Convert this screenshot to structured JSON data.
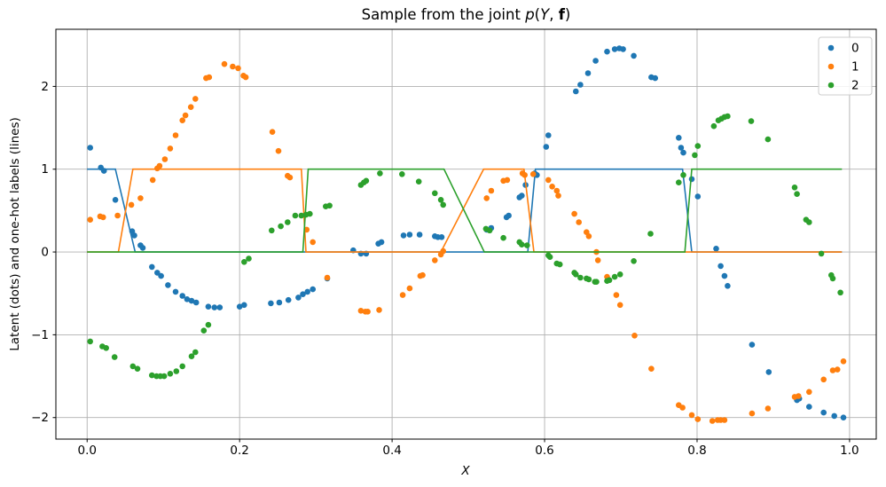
{
  "chart_data": {
    "type": "scatter",
    "title": "Sample from the joint p(Y, f)",
    "title_parts": {
      "prefix": "Sample from the joint ",
      "func": "p",
      "paren_open": "(",
      "var": "Y",
      "comma": ", ",
      "vec": "f",
      "paren_close": ")"
    },
    "xlabel": "X",
    "ylabel": "Latent (dots) and one-hot labels (lines)",
    "xlim": [
      -0.041,
      1.035
    ],
    "ylim": [
      -2.26,
      2.69
    ],
    "grid": true,
    "grid_color": "#b0b0b0",
    "x_ticks": {
      "values": [
        0.0,
        0.2,
        0.4,
        0.6,
        0.8,
        1.0
      ],
      "labels": [
        "0.0",
        "0.2",
        "0.4",
        "0.6",
        "0.8",
        "1.0"
      ]
    },
    "y_ticks": {
      "values": [
        -2,
        -1,
        0,
        1,
        2
      ],
      "labels": [
        "−2",
        "−1",
        "0",
        "1",
        "2"
      ]
    },
    "legend": {
      "position": "upper right",
      "entries": [
        "0",
        "1",
        "2"
      ]
    },
    "series": [
      {
        "name": "0",
        "color": "#1f77b4",
        "marker": "dot",
        "dots": [
          [
            0.004,
            1.26
          ],
          [
            0.018,
            1.02
          ],
          [
            0.022,
            0.98
          ],
          [
            0.037,
            0.63
          ],
          [
            0.059,
            0.25
          ],
          [
            0.062,
            0.2
          ],
          [
            0.07,
            0.08
          ],
          [
            0.073,
            0.05
          ],
          [
            0.085,
            -0.18
          ],
          [
            0.092,
            -0.25
          ],
          [
            0.097,
            -0.29
          ],
          [
            0.106,
            -0.4
          ],
          [
            0.116,
            -0.48
          ],
          [
            0.125,
            -0.53
          ],
          [
            0.131,
            -0.57
          ],
          [
            0.137,
            -0.59
          ],
          [
            0.143,
            -0.61
          ],
          [
            0.159,
            -0.66
          ],
          [
            0.167,
            -0.67
          ],
          [
            0.174,
            -0.67
          ],
          [
            0.2,
            -0.66
          ],
          [
            0.206,
            -0.64
          ],
          [
            0.241,
            -0.62
          ],
          [
            0.252,
            -0.61
          ],
          [
            0.264,
            -0.58
          ],
          [
            0.277,
            -0.55
          ],
          [
            0.283,
            -0.51
          ],
          [
            0.289,
            -0.48
          ],
          [
            0.296,
            -0.45
          ],
          [
            0.315,
            -0.32
          ],
          [
            0.349,
            0.02
          ],
          [
            0.359,
            -0.02
          ],
          [
            0.366,
            -0.02
          ],
          [
            0.382,
            0.1
          ],
          [
            0.386,
            0.12
          ],
          [
            0.415,
            0.2
          ],
          [
            0.423,
            0.21
          ],
          [
            0.436,
            0.21
          ],
          [
            0.456,
            0.19
          ],
          [
            0.46,
            0.18
          ],
          [
            0.465,
            0.18
          ],
          [
            0.524,
            0.27
          ],
          [
            0.53,
            0.29
          ],
          [
            0.55,
            0.42
          ],
          [
            0.553,
            0.44
          ],
          [
            0.567,
            0.66
          ],
          [
            0.57,
            0.68
          ],
          [
            0.575,
            0.81
          ],
          [
            0.587,
            0.95
          ],
          [
            0.59,
            0.93
          ],
          [
            0.602,
            1.27
          ],
          [
            0.605,
            1.41
          ],
          [
            0.641,
            1.94
          ],
          [
            0.647,
            2.02
          ],
          [
            0.657,
            2.16
          ],
          [
            0.667,
            2.31
          ],
          [
            0.682,
            2.42
          ],
          [
            0.692,
            2.45
          ],
          [
            0.698,
            2.46
          ],
          [
            0.703,
            2.45
          ],
          [
            0.717,
            2.37
          ],
          [
            0.74,
            2.11
          ],
          [
            0.745,
            2.1
          ],
          [
            0.776,
            1.38
          ],
          [
            0.779,
            1.26
          ],
          [
            0.782,
            1.2
          ],
          [
            0.793,
            0.88
          ],
          [
            0.801,
            0.67
          ],
          [
            0.825,
            0.04
          ],
          [
            0.831,
            -0.17
          ],
          [
            0.836,
            -0.29
          ],
          [
            0.84,
            -0.41
          ],
          [
            0.872,
            -1.12
          ],
          [
            0.894,
            -1.45
          ],
          [
            0.931,
            -1.79
          ],
          [
            0.934,
            -1.77
          ],
          [
            0.947,
            -1.87
          ],
          [
            0.966,
            -1.94
          ],
          [
            0.98,
            -1.98
          ],
          [
            0.992,
            -2.0
          ]
        ],
        "line": [
          [
            0.0,
            1
          ],
          [
            0.037,
            1
          ],
          [
            0.063,
            0
          ],
          [
            0.578,
            0
          ],
          [
            0.588,
            1
          ],
          [
            0.781,
            1
          ],
          [
            0.793,
            0
          ],
          [
            0.99,
            0
          ]
        ]
      },
      {
        "name": "1",
        "color": "#ff7f0e",
        "marker": "dot",
        "dots": [
          [
            0.004,
            0.39
          ],
          [
            0.017,
            0.43
          ],
          [
            0.021,
            0.42
          ],
          [
            0.04,
            0.44
          ],
          [
            0.058,
            0.57
          ],
          [
            0.07,
            0.65
          ],
          [
            0.086,
            0.87
          ],
          [
            0.092,
            1.01
          ],
          [
            0.095,
            1.04
          ],
          [
            0.102,
            1.12
          ],
          [
            0.109,
            1.25
          ],
          [
            0.116,
            1.41
          ],
          [
            0.125,
            1.59
          ],
          [
            0.129,
            1.65
          ],
          [
            0.136,
            1.75
          ],
          [
            0.142,
            1.85
          ],
          [
            0.156,
            2.1
          ],
          [
            0.16,
            2.11
          ],
          [
            0.18,
            2.27
          ],
          [
            0.191,
            2.24
          ],
          [
            0.198,
            2.22
          ],
          [
            0.205,
            2.13
          ],
          [
            0.208,
            2.11
          ],
          [
            0.243,
            1.45
          ],
          [
            0.251,
            1.22
          ],
          [
            0.263,
            0.92
          ],
          [
            0.266,
            0.9
          ],
          [
            0.288,
            0.27
          ],
          [
            0.296,
            0.12
          ],
          [
            0.315,
            -0.31
          ],
          [
            0.359,
            -0.71
          ],
          [
            0.365,
            -0.72
          ],
          [
            0.368,
            -0.72
          ],
          [
            0.383,
            -0.7
          ],
          [
            0.414,
            -0.52
          ],
          [
            0.423,
            -0.44
          ],
          [
            0.437,
            -0.29
          ],
          [
            0.44,
            -0.28
          ],
          [
            0.456,
            -0.1
          ],
          [
            0.464,
            -0.03
          ],
          [
            0.467,
            0.01
          ],
          [
            0.524,
            0.65
          ],
          [
            0.53,
            0.74
          ],
          [
            0.546,
            0.86
          ],
          [
            0.551,
            0.87
          ],
          [
            0.571,
            0.95
          ],
          [
            0.574,
            0.93
          ],
          [
            0.585,
            0.94
          ],
          [
            0.605,
            0.87
          ],
          [
            0.61,
            0.79
          ],
          [
            0.616,
            0.74
          ],
          [
            0.618,
            0.68
          ],
          [
            0.639,
            0.46
          ],
          [
            0.645,
            0.36
          ],
          [
            0.655,
            0.24
          ],
          [
            0.658,
            0.19
          ],
          [
            0.668,
            0.0
          ],
          [
            0.67,
            -0.1
          ],
          [
            0.682,
            -0.3
          ],
          [
            0.694,
            -0.52
          ],
          [
            0.699,
            -0.64
          ],
          [
            0.718,
            -1.01
          ],
          [
            0.74,
            -1.41
          ],
          [
            0.776,
            -1.85
          ],
          [
            0.781,
            -1.88
          ],
          [
            0.793,
            -1.97
          ],
          [
            0.801,
            -2.02
          ],
          [
            0.82,
            -2.04
          ],
          [
            0.827,
            -2.03
          ],
          [
            0.831,
            -2.03
          ],
          [
            0.836,
            -2.03
          ],
          [
            0.872,
            -1.95
          ],
          [
            0.893,
            -1.89
          ],
          [
            0.928,
            -1.75
          ],
          [
            0.933,
            -1.74
          ],
          [
            0.947,
            -1.69
          ],
          [
            0.966,
            -1.54
          ],
          [
            0.978,
            -1.43
          ],
          [
            0.984,
            -1.42
          ],
          [
            0.992,
            -1.32
          ]
        ],
        "line": [
          [
            0.0,
            0
          ],
          [
            0.041,
            0
          ],
          [
            0.06,
            1
          ],
          [
            0.281,
            1
          ],
          [
            0.287,
            0
          ],
          [
            0.464,
            0
          ],
          [
            0.52,
            1
          ],
          [
            0.573,
            1
          ],
          [
            0.586,
            0
          ],
          [
            0.99,
            0
          ]
        ]
      },
      {
        "name": "2",
        "color": "#2ca02c",
        "marker": "dot",
        "dots": [
          [
            0.004,
            -1.08
          ],
          [
            0.02,
            -1.14
          ],
          [
            0.025,
            -1.16
          ],
          [
            0.036,
            -1.27
          ],
          [
            0.06,
            -1.38
          ],
          [
            0.066,
            -1.41
          ],
          [
            0.085,
            -1.49
          ],
          [
            0.091,
            -1.5
          ],
          [
            0.096,
            -1.5
          ],
          [
            0.101,
            -1.5
          ],
          [
            0.109,
            -1.47
          ],
          [
            0.117,
            -1.44
          ],
          [
            0.125,
            -1.38
          ],
          [
            0.137,
            -1.26
          ],
          [
            0.142,
            -1.21
          ],
          [
            0.153,
            -0.95
          ],
          [
            0.159,
            -0.88
          ],
          [
            0.206,
            -0.12
          ],
          [
            0.212,
            -0.08
          ],
          [
            0.242,
            0.26
          ],
          [
            0.254,
            0.31
          ],
          [
            0.263,
            0.36
          ],
          [
            0.273,
            0.44
          ],
          [
            0.281,
            0.44
          ],
          [
            0.287,
            0.45
          ],
          [
            0.292,
            0.46
          ],
          [
            0.313,
            0.55
          ],
          [
            0.318,
            0.56
          ],
          [
            0.359,
            0.81
          ],
          [
            0.363,
            0.84
          ],
          [
            0.366,
            0.86
          ],
          [
            0.384,
            0.95
          ],
          [
            0.413,
            0.94
          ],
          [
            0.435,
            0.85
          ],
          [
            0.456,
            0.71
          ],
          [
            0.464,
            0.63
          ],
          [
            0.467,
            0.57
          ],
          [
            0.523,
            0.28
          ],
          [
            0.528,
            0.26
          ],
          [
            0.546,
            0.17
          ],
          [
            0.567,
            0.12
          ],
          [
            0.57,
            0.09
          ],
          [
            0.577,
            0.08
          ],
          [
            0.605,
            -0.04
          ],
          [
            0.607,
            -0.06
          ],
          [
            0.616,
            -0.14
          ],
          [
            0.62,
            -0.15
          ],
          [
            0.639,
            -0.25
          ],
          [
            0.641,
            -0.27
          ],
          [
            0.647,
            -0.31
          ],
          [
            0.655,
            -0.32
          ],
          [
            0.658,
            -0.33
          ],
          [
            0.666,
            -0.36
          ],
          [
            0.668,
            -0.36
          ],
          [
            0.682,
            -0.35
          ],
          [
            0.685,
            -0.34
          ],
          [
            0.692,
            -0.3
          ],
          [
            0.699,
            -0.27
          ],
          [
            0.717,
            -0.11
          ],
          [
            0.739,
            0.22
          ],
          [
            0.776,
            0.84
          ],
          [
            0.782,
            0.93
          ],
          [
            0.797,
            1.17
          ],
          [
            0.801,
            1.28
          ],
          [
            0.822,
            1.52
          ],
          [
            0.828,
            1.59
          ],
          [
            0.832,
            1.61
          ],
          [
            0.836,
            1.63
          ],
          [
            0.84,
            1.64
          ],
          [
            0.871,
            1.58
          ],
          [
            0.893,
            1.36
          ],
          [
            0.928,
            0.78
          ],
          [
            0.931,
            0.7
          ],
          [
            0.943,
            0.39
          ],
          [
            0.947,
            0.36
          ],
          [
            0.963,
            -0.02
          ],
          [
            0.976,
            -0.28
          ],
          [
            0.978,
            -0.32
          ],
          [
            0.988,
            -0.49
          ]
        ],
        "line": [
          [
            0.0,
            0
          ],
          [
            0.283,
            0
          ],
          [
            0.29,
            1
          ],
          [
            0.468,
            1
          ],
          [
            0.521,
            0
          ],
          [
            0.784,
            0
          ],
          [
            0.793,
            1
          ],
          [
            0.99,
            1
          ]
        ]
      }
    ]
  }
}
